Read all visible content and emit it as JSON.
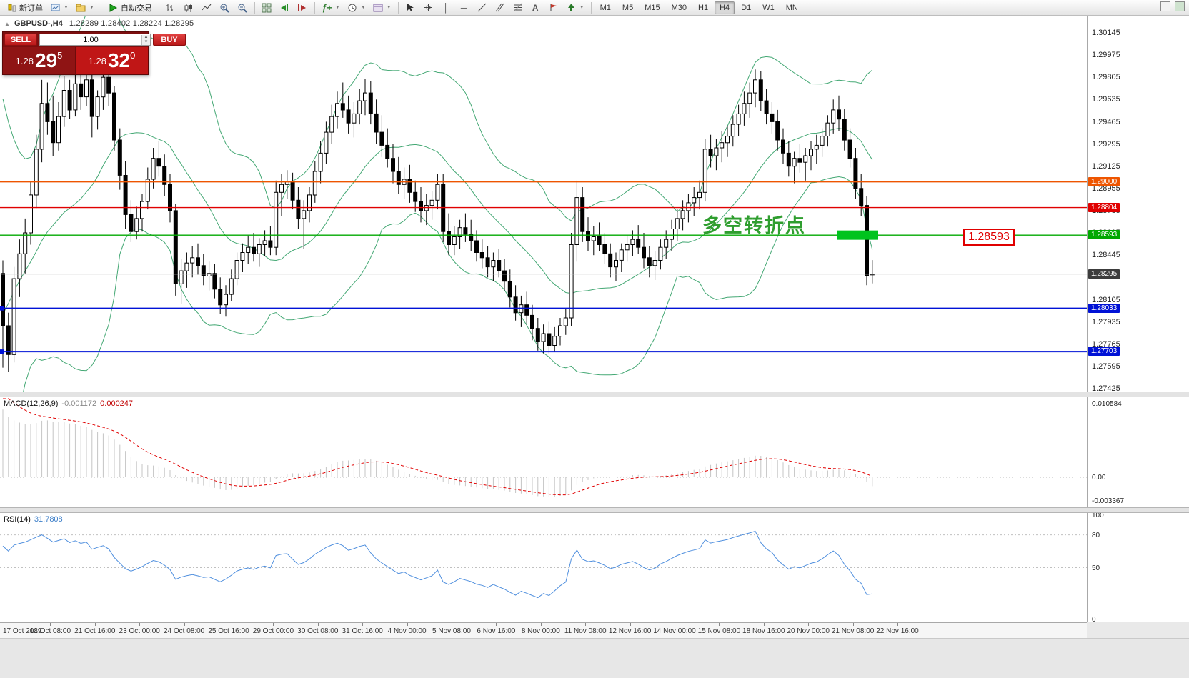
{
  "toolbar": {
    "new_order": "新订单",
    "autotrading": "自动交易",
    "timeframes": [
      "M1",
      "M5",
      "M15",
      "M30",
      "H1",
      "H4",
      "D1",
      "W1",
      "MN"
    ],
    "active_timeframe": "H4"
  },
  "chart_header": {
    "symbol": "GBPUSD-,H4",
    "open": "1.28289",
    "high": "1.28402",
    "low": "1.28224",
    "close": "1.28295"
  },
  "trade_panel": {
    "sell_label": "SELL",
    "buy_label": "BUY",
    "volume": "1.00",
    "sell_small": "1.28",
    "sell_big": "29",
    "sell_sup": "5",
    "buy_small": "1.28",
    "buy_big": "32",
    "buy_sup": "0"
  },
  "annotation": {
    "text": "多空转折点",
    "color": "#2f9e2f"
  },
  "price_label_box": {
    "text": "1.28593"
  },
  "marker": {
    "price": 1.28593,
    "color": "#00c31e"
  },
  "levels": [
    {
      "price": 1.29,
      "label": "1.29000",
      "color": "#ee5500",
      "width": 1.4,
      "marker_left": false
    },
    {
      "price": 1.28804,
      "label": "1.28804",
      "color": "#e00000",
      "width": 1.4,
      "marker_left": false
    },
    {
      "price": 1.28593,
      "label": "1.28593",
      "color": "#00a800",
      "width": 1.4,
      "marker_left": false
    },
    {
      "price": 1.28033,
      "label": "1.28033",
      "color": "#0012d6",
      "width": 2,
      "marker_left": true
    },
    {
      "price": 1.27703,
      "label": "1.27703",
      "color": "#0012d6",
      "width": 2,
      "marker_left": true
    }
  ],
  "current_price": {
    "price": 1.28295,
    "label": "1.28295",
    "color": "#3c3c3c"
  },
  "price_axis": {
    "max": 1.30145,
    "min": 1.27425,
    "ticks": [
      "1.30145",
      "1.29975",
      "1.29805",
      "1.29635",
      "1.29465",
      "1.29295",
      "1.29125",
      "1.28955",
      "1.28785",
      "1.28615",
      "1.28445",
      "1.28275",
      "1.28105",
      "1.27935",
      "1.27765",
      "1.27595",
      "1.27425"
    ]
  },
  "time_axis": [
    "17 Oct 2019",
    "18 Oct 08:00",
    "21 Oct 16:00",
    "23 Oct 00:00",
    "24 Oct 08:00",
    "25 Oct 16:00",
    "29 Oct 00:00",
    "30 Oct 08:00",
    "31 Oct 16:00",
    "4 Nov 00:00",
    "5 Nov 08:00",
    "6 Nov 16:00",
    "8 Nov 00:00",
    "11 Nov 08:00",
    "12 Nov 16:00",
    "14 Nov 00:00",
    "15 Nov 08:00",
    "18 Nov 16:00",
    "20 Nov 00:00",
    "21 Nov 08:00",
    "22 Nov 16:00"
  ],
  "macd": {
    "label": "MACD(12,26,9)",
    "value_main": "-0.001172",
    "value_signal": "0.000247",
    "scale": [
      "0.010584",
      "0.00",
      "-0.003367"
    ]
  },
  "rsi": {
    "label": "RSI(14)",
    "value": "31.7808",
    "scale": [
      "100",
      "80",
      "50",
      "0"
    ],
    "levels": [
      80,
      50
    ]
  },
  "chart_data": {
    "type": "candlestick",
    "symbol": "GBPUSD",
    "timeframe": "H4",
    "title": "GBPUSD-,H4",
    "ylim": [
      1.27425,
      1.30145
    ],
    "indicators": {
      "bb_period": 20,
      "bb_dev": 2,
      "macd_fast": 12,
      "macd_slow": 26,
      "macd_signal": 9,
      "rsi_period": 14
    },
    "colors": {
      "bull": "#ffffff",
      "bear": "#000000",
      "outline": "#000000",
      "bands": "#44a874",
      "macd_hist": "#c4c4c4",
      "macd_signal": "#e00000",
      "rsi": "#4f8fde"
    },
    "warmup_closes_for_indicators": [
      1.2245,
      1.2262,
      1.2283,
      1.2305,
      1.2332,
      1.2366,
      1.2402,
      1.2441,
      1.2481,
      1.2521,
      1.2561,
      1.2601,
      1.2641,
      1.2681,
      1.2716,
      1.2746,
      1.2771,
      1.2792,
      1.2811,
      1.2831,
      1.2851,
      1.2871,
      1.2891,
      1.2906,
      1.2891,
      1.2871,
      1.2851,
      1.2831,
      1.2811,
      1.2821
    ],
    "candles": [
      [
        1.283,
        1.284,
        1.2758,
        1.279
      ],
      [
        1.279,
        1.28,
        1.2755,
        1.2768
      ],
      [
        1.2768,
        1.2835,
        1.2762,
        1.2826
      ],
      [
        1.2826,
        1.2856,
        1.2812,
        1.2845
      ],
      [
        1.2845,
        1.2872,
        1.283,
        1.2861
      ],
      [
        1.2861,
        1.29,
        1.2852,
        1.289
      ],
      [
        1.289,
        1.2936,
        1.288,
        1.2925
      ],
      [
        1.2925,
        1.2978,
        1.2915,
        1.296
      ],
      [
        1.296,
        1.2976,
        1.2936,
        1.2946
      ],
      [
        1.2946,
        1.2966,
        1.292,
        1.293
      ],
      [
        1.293,
        1.2961,
        1.2924,
        1.295
      ],
      [
        1.295,
        1.2981,
        1.2942,
        1.297
      ],
      [
        1.297,
        1.2978,
        1.2948,
        1.2955
      ],
      [
        1.2955,
        1.2985,
        1.295,
        1.2975
      ],
      [
        1.2975,
        1.2982,
        1.2955,
        1.2965
      ],
      [
        1.2965,
        1.2986,
        1.2958,
        1.2978
      ],
      [
        1.2978,
        1.2983,
        1.2934,
        1.295
      ],
      [
        1.295,
        1.297,
        1.294,
        1.2965
      ],
      [
        1.2965,
        1.2987,
        1.2955,
        1.298
      ],
      [
        1.298,
        1.2988,
        1.2958,
        1.2968
      ],
      [
        1.2968,
        1.2973,
        1.2924,
        1.2932
      ],
      [
        1.2932,
        1.2941,
        1.2894,
        1.2905
      ],
      [
        1.2905,
        1.2916,
        1.2864,
        1.2875
      ],
      [
        1.2875,
        1.2886,
        1.2854,
        1.2862
      ],
      [
        1.2862,
        1.2881,
        1.2856,
        1.2872
      ],
      [
        1.2872,
        1.2891,
        1.2862,
        1.2885
      ],
      [
        1.2885,
        1.2911,
        1.2879,
        1.2902
      ],
      [
        1.2902,
        1.2926,
        1.2895,
        1.2918
      ],
      [
        1.2918,
        1.2931,
        1.2904,
        1.2912
      ],
      [
        1.2912,
        1.2921,
        1.2889,
        1.2898
      ],
      [
        1.2898,
        1.2906,
        1.2869,
        1.2878
      ],
      [
        1.2878,
        1.2883,
        1.2813,
        1.2822
      ],
      [
        1.2822,
        1.2841,
        1.2807,
        1.2832
      ],
      [
        1.2832,
        1.2846,
        1.2819,
        1.2838
      ],
      [
        1.2838,
        1.2851,
        1.2827,
        1.2842
      ],
      [
        1.2842,
        1.2853,
        1.2829,
        1.2836
      ],
      [
        1.2836,
        1.2845,
        1.2821,
        1.2828
      ],
      [
        1.2828,
        1.2839,
        1.2817,
        1.283
      ],
      [
        1.283,
        1.2837,
        1.2811,
        1.2818
      ],
      [
        1.2818,
        1.2827,
        1.2799,
        1.2806
      ],
      [
        1.2806,
        1.2821,
        1.2797,
        1.2814
      ],
      [
        1.2814,
        1.2833,
        1.2809,
        1.2826
      ],
      [
        1.2826,
        1.2846,
        1.2821,
        1.284
      ],
      [
        1.284,
        1.2853,
        1.2831,
        1.2846
      ],
      [
        1.2846,
        1.2859,
        1.2837,
        1.285
      ],
      [
        1.285,
        1.2861,
        1.2839,
        1.2845
      ],
      [
        1.2845,
        1.2857,
        1.2835,
        1.2852
      ],
      [
        1.2852,
        1.2863,
        1.2843,
        1.2855
      ],
      [
        1.2855,
        1.2866,
        1.2844,
        1.285
      ],
      [
        1.285,
        1.2901,
        1.2844,
        1.2892
      ],
      [
        1.2892,
        1.2906,
        1.2874,
        1.2898
      ],
      [
        1.2898,
        1.2909,
        1.2887,
        1.29
      ],
      [
        1.29,
        1.2907,
        1.2879,
        1.2886
      ],
      [
        1.2886,
        1.2896,
        1.2864,
        1.2872
      ],
      [
        1.2872,
        1.2886,
        1.2849,
        1.2878
      ],
      [
        1.2878,
        1.2896,
        1.2869,
        1.289
      ],
      [
        1.289,
        1.2916,
        1.2884,
        1.2908
      ],
      [
        1.2908,
        1.2931,
        1.2899,
        1.2922
      ],
      [
        1.2922,
        1.2946,
        1.2914,
        1.2938
      ],
      [
        1.2938,
        1.2959,
        1.2929,
        1.295
      ],
      [
        1.295,
        1.2969,
        1.2941,
        1.296
      ],
      [
        1.296,
        1.2976,
        1.2949,
        1.2955
      ],
      [
        1.2955,
        1.2966,
        1.2937,
        1.2945
      ],
      [
        1.2945,
        1.2961,
        1.2934,
        1.2952
      ],
      [
        1.2952,
        1.2971,
        1.2944,
        1.2962
      ],
      [
        1.2962,
        1.2979,
        1.2951,
        1.2968
      ],
      [
        1.2968,
        1.2977,
        1.2944,
        1.2952
      ],
      [
        1.2952,
        1.2963,
        1.2929,
        1.2938
      ],
      [
        1.2938,
        1.2951,
        1.2919,
        1.2928
      ],
      [
        1.2928,
        1.2941,
        1.2911,
        1.2918
      ],
      [
        1.2918,
        1.2929,
        1.2899,
        1.2908
      ],
      [
        1.2908,
        1.2919,
        1.2891,
        1.2898
      ],
      [
        1.2898,
        1.2911,
        1.2887,
        1.2902
      ],
      [
        1.2902,
        1.2913,
        1.2884,
        1.2892
      ],
      [
        1.2892,
        1.2901,
        1.2877,
        1.2885
      ],
      [
        1.2885,
        1.2896,
        1.2869,
        1.2878
      ],
      [
        1.2878,
        1.2891,
        1.2867,
        1.2882
      ],
      [
        1.2882,
        1.2893,
        1.2871,
        1.2886
      ],
      [
        1.2886,
        1.2906,
        1.2879,
        1.2898
      ],
      [
        1.2898,
        1.2906,
        1.2854,
        1.2862
      ],
      [
        1.2862,
        1.2876,
        1.2844,
        1.2852
      ],
      [
        1.2852,
        1.2866,
        1.2844,
        1.2858
      ],
      [
        1.2858,
        1.2871,
        1.2849,
        1.2865
      ],
      [
        1.2865,
        1.2876,
        1.2854,
        1.286
      ],
      [
        1.286,
        1.2871,
        1.2847,
        1.2855
      ],
      [
        1.2855,
        1.2863,
        1.2839,
        1.2846
      ],
      [
        1.2846,
        1.2856,
        1.2834,
        1.2842
      ],
      [
        1.2842,
        1.2851,
        1.2827,
        1.2835
      ],
      [
        1.2835,
        1.2846,
        1.2824,
        1.284
      ],
      [
        1.284,
        1.2849,
        1.2827,
        1.2832
      ],
      [
        1.2832,
        1.2841,
        1.2817,
        1.2824
      ],
      [
        1.2824,
        1.2833,
        1.2804,
        1.2812
      ],
      [
        1.2812,
        1.2821,
        1.2794,
        1.28
      ],
      [
        1.28,
        1.2813,
        1.2789,
        1.2806
      ],
      [
        1.2806,
        1.2816,
        1.2791,
        1.2798
      ],
      [
        1.2798,
        1.2806,
        1.2779,
        1.2788
      ],
      [
        1.2788,
        1.2796,
        1.2771,
        1.2778
      ],
      [
        1.2778,
        1.2791,
        1.2769,
        1.2784
      ],
      [
        1.2784,
        1.2793,
        1.2769,
        1.2775
      ],
      [
        1.2775,
        1.2789,
        1.277,
        1.2782
      ],
      [
        1.2782,
        1.2796,
        1.2775,
        1.279
      ],
      [
        1.279,
        1.2803,
        1.2783,
        1.2796
      ],
      [
        1.2796,
        1.2861,
        1.279,
        1.2852
      ],
      [
        1.2852,
        1.2901,
        1.2839,
        1.2888
      ],
      [
        1.2888,
        1.2896,
        1.2854,
        1.2862
      ],
      [
        1.2862,
        1.2873,
        1.2847,
        1.2855
      ],
      [
        1.2855,
        1.2866,
        1.2844,
        1.2858
      ],
      [
        1.2858,
        1.2869,
        1.2847,
        1.2852
      ],
      [
        1.2852,
        1.2861,
        1.2837,
        1.2845
      ],
      [
        1.2845,
        1.2853,
        1.2827,
        1.2835
      ],
      [
        1.2835,
        1.2846,
        1.2824,
        1.284
      ],
      [
        1.284,
        1.2853,
        1.2831,
        1.2848
      ],
      [
        1.2848,
        1.2859,
        1.2839,
        1.2852
      ],
      [
        1.2852,
        1.2863,
        1.2843,
        1.2856
      ],
      [
        1.2856,
        1.2867,
        1.2845,
        1.285
      ],
      [
        1.285,
        1.2861,
        1.2834,
        1.2842
      ],
      [
        1.2842,
        1.2851,
        1.2827,
        1.2836
      ],
      [
        1.2836,
        1.2847,
        1.2825,
        1.284
      ],
      [
        1.284,
        1.2856,
        1.2833,
        1.285
      ],
      [
        1.285,
        1.2863,
        1.2841,
        1.2856
      ],
      [
        1.2856,
        1.2871,
        1.2847,
        1.2864
      ],
      [
        1.2864,
        1.2879,
        1.2855,
        1.2872
      ],
      [
        1.2872,
        1.2886,
        1.2863,
        1.2878
      ],
      [
        1.2878,
        1.2891,
        1.2869,
        1.2884
      ],
      [
        1.2884,
        1.2896,
        1.2874,
        1.2888
      ],
      [
        1.2888,
        1.2901,
        1.2879,
        1.2892
      ],
      [
        1.2892,
        1.2933,
        1.2885,
        1.2925
      ],
      [
        1.2925,
        1.2936,
        1.2911,
        1.292
      ],
      [
        1.292,
        1.2933,
        1.2909,
        1.2926
      ],
      [
        1.2926,
        1.2939,
        1.2915,
        1.293
      ],
      [
        1.293,
        1.2943,
        1.2919,
        1.2935
      ],
      [
        1.2935,
        1.2951,
        1.2927,
        1.2944
      ],
      [
        1.2944,
        1.2959,
        1.2935,
        1.2952
      ],
      [
        1.2952,
        1.2969,
        1.2943,
        1.296
      ],
      [
        1.296,
        1.2976,
        1.2949,
        1.2968
      ],
      [
        1.2968,
        1.2986,
        1.2957,
        1.2978
      ],
      [
        1.2978,
        1.2985,
        1.2954,
        1.2962
      ],
      [
        1.2962,
        1.2971,
        1.2944,
        1.2952
      ],
      [
        1.2952,
        1.2961,
        1.2937,
        1.2946
      ],
      [
        1.2946,
        1.2955,
        1.2924,
        1.2932
      ],
      [
        1.2932,
        1.2941,
        1.2914,
        1.2922
      ],
      [
        1.2922,
        1.2931,
        1.2904,
        1.2912
      ],
      [
        1.2912,
        1.2923,
        1.2899,
        1.2918
      ],
      [
        1.2918,
        1.2929,
        1.2907,
        1.2915
      ],
      [
        1.2915,
        1.2926,
        1.2901,
        1.292
      ],
      [
        1.292,
        1.2931,
        1.2909,
        1.2925
      ],
      [
        1.2925,
        1.2936,
        1.2914,
        1.2928
      ],
      [
        1.2928,
        1.2941,
        1.2919,
        1.2935
      ],
      [
        1.2935,
        1.2951,
        1.2927,
        1.2945
      ],
      [
        1.2945,
        1.2963,
        1.2937,
        1.2955
      ],
      [
        1.2955,
        1.2966,
        1.2939,
        1.2948
      ],
      [
        1.2948,
        1.2956,
        1.2924,
        1.2932
      ],
      [
        1.2932,
        1.2941,
        1.2911,
        1.2918
      ],
      [
        1.2918,
        1.2926,
        1.2887,
        1.2895
      ],
      [
        1.2895,
        1.2906,
        1.2874,
        1.2882
      ],
      [
        1.2882,
        1.2889,
        1.2821,
        1.2828
      ],
      [
        1.28289,
        1.28402,
        1.28224,
        1.28295
      ]
    ]
  }
}
